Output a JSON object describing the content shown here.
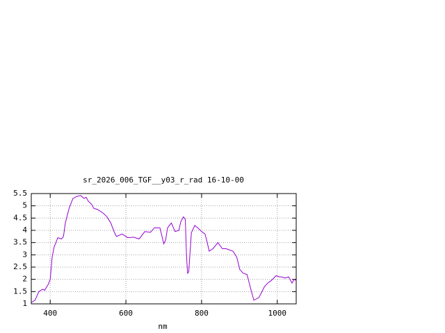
{
  "chart_data": {
    "type": "line",
    "title": "sr_2026_006_TGF__y03_r_rad 16-10-00",
    "xlabel": "nm",
    "series": [
      {
        "name": "sr_2026_006_TGF__y03_r_rad",
        "color": "#9400d3",
        "x": [
          350,
          360,
          370,
          380,
          385,
          395,
          400,
          405,
          410,
          420,
          430,
          435,
          440,
          450,
          460,
          470,
          480,
          490,
          495,
          500,
          510,
          515,
          525,
          540,
          550,
          560,
          570,
          575,
          590,
          605,
          620,
          635,
          650,
          665,
          675,
          690,
          700,
          705,
          710,
          720,
          730,
          740,
          745,
          752,
          757,
          760,
          763,
          766,
          773,
          782,
          790,
          800,
          809,
          815,
          820,
          830,
          843,
          855,
          865,
          883,
          893,
          901,
          910,
          920,
          930,
          938,
          951,
          958,
          966,
          975,
          984,
          997,
          1005,
          1012,
          1020,
          1030,
          1039,
          1045,
          1050
        ],
        "values": [
          1.05,
          1.15,
          1.5,
          1.6,
          1.55,
          1.8,
          2.0,
          2.9,
          3.3,
          3.7,
          3.65,
          3.75,
          4.3,
          4.9,
          5.3,
          5.38,
          5.42,
          5.3,
          5.35,
          5.2,
          5.05,
          4.9,
          4.85,
          4.7,
          4.55,
          4.3,
          3.9,
          3.75,
          3.85,
          3.7,
          3.72,
          3.65,
          3.95,
          3.92,
          4.1,
          4.1,
          3.45,
          3.6,
          4.1,
          4.3,
          3.95,
          4.0,
          4.35,
          4.55,
          4.45,
          3.0,
          2.25,
          2.3,
          3.9,
          4.2,
          4.1,
          3.95,
          3.85,
          3.5,
          3.15,
          3.25,
          3.5,
          3.25,
          3.25,
          3.15,
          2.9,
          2.4,
          2.25,
          2.2,
          1.6,
          1.15,
          1.25,
          1.45,
          1.7,
          1.85,
          1.95,
          2.15,
          2.1,
          2.1,
          2.05,
          2.1,
          1.85,
          2.0,
          1.95
        ]
      }
    ],
    "xlim": [
      350,
      1050
    ],
    "xticks": [
      400,
      600,
      800,
      1000
    ],
    "ylim": [
      1,
      5.5
    ],
    "yticks": [
      1,
      1.5,
      2,
      2.5,
      3,
      3.5,
      4,
      4.5,
      5,
      5.5
    ],
    "grid": true
  }
}
